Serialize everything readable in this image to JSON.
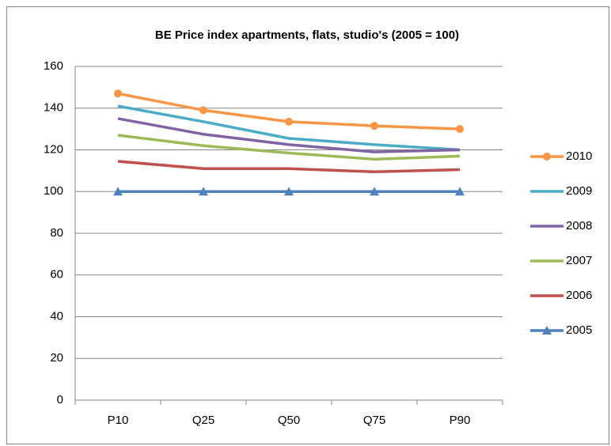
{
  "chart_data": {
    "type": "line",
    "title": "BE Price index apartments, flats, studio's (2005 = 100)",
    "categories": [
      "P10",
      "Q25",
      "Q50",
      "Q75",
      "P90"
    ],
    "series": [
      {
        "name": "2010",
        "color": "#f79646",
        "marker": "circle",
        "values": [
          147,
          139,
          133.5,
          131.5,
          130
        ]
      },
      {
        "name": "2009",
        "color": "#4bacc6",
        "marker": "none",
        "values": [
          141,
          133.5,
          125.5,
          122.5,
          120
        ]
      },
      {
        "name": "2008",
        "color": "#8064a2",
        "marker": "none",
        "values": [
          135,
          127.5,
          122.5,
          119,
          120
        ]
      },
      {
        "name": "2007",
        "color": "#9bbb59",
        "marker": "none",
        "values": [
          127,
          122,
          118.5,
          115.5,
          117
        ]
      },
      {
        "name": "2006",
        "color": "#c0504d",
        "marker": "none",
        "values": [
          114.5,
          111,
          111,
          109.5,
          110.5
        ]
      },
      {
        "name": "2005",
        "color": "#4f81bd",
        "marker": "triangle",
        "values": [
          100,
          100,
          100,
          100,
          100
        ]
      }
    ],
    "ylim": [
      0,
      160
    ],
    "yticks": [
      0,
      20,
      40,
      60,
      80,
      100,
      120,
      140,
      160
    ],
    "grid": true,
    "legend": "right"
  }
}
